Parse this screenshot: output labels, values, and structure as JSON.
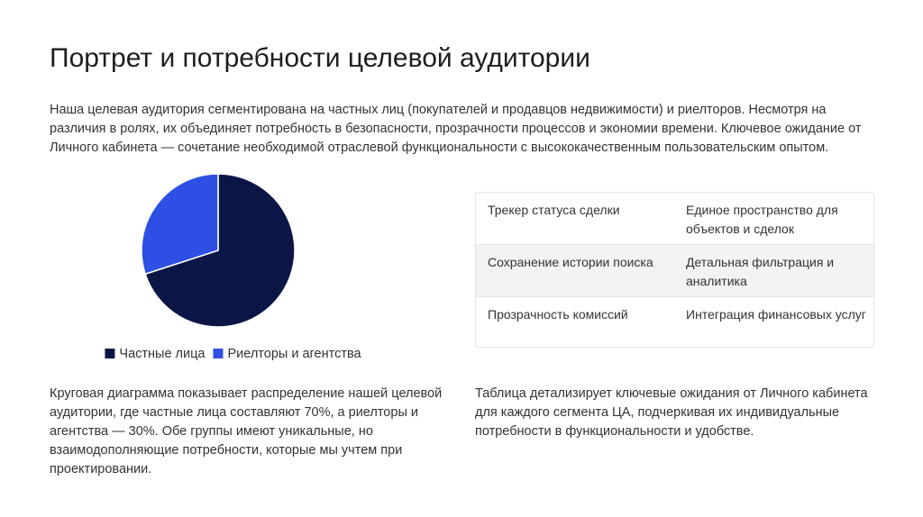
{
  "header": {
    "title": "Портрет и потребности целевой аудитории"
  },
  "intro": "Наша целевая аудитория сегментирована на частных лиц (покупателей и продавцов недвижимости) и риелторов. Несмотря на различия в ролях, их объединяет потребность в безопасности, прозрачности процессов и экономии времени. Ключевое ожидание от Личного кабинета — сочетание необходимой отраслевой функциональности с высококачественным пользовательским опытом.",
  "chart_data": {
    "type": "pie",
    "categories": [
      "Частные лица",
      "Риелторы и агентства"
    ],
    "values": [
      70,
      30
    ],
    "colors": [
      "#0c1646",
      "#2d4fe3"
    ],
    "legend": "bottom"
  },
  "chart_caption": "Круговая диаграмма показывает распределение нашей целевой аудитории, где частные лица составляют 70%, а риелторы и агентства — 30%. Обе группы имеют уникальные, но взаимодополняющие потребности, которые мы учтем при проектировании.",
  "table": {
    "rows": [
      [
        "Трекер статуса сделки",
        "Единое пространство для объектов и сделок"
      ],
      [
        "Сохранение истории поиска",
        "Детальная фильтрация и аналитика"
      ],
      [
        "Прозрачность комиссий",
        "Интеграция финансовых услуг"
      ]
    ]
  },
  "table_caption": "Таблица детализирует ключевые ожидания от Личного кабинета для каждого сегмента ЦА, подчеркивая их индивидуальные потребности в функциональности и удобстве."
}
